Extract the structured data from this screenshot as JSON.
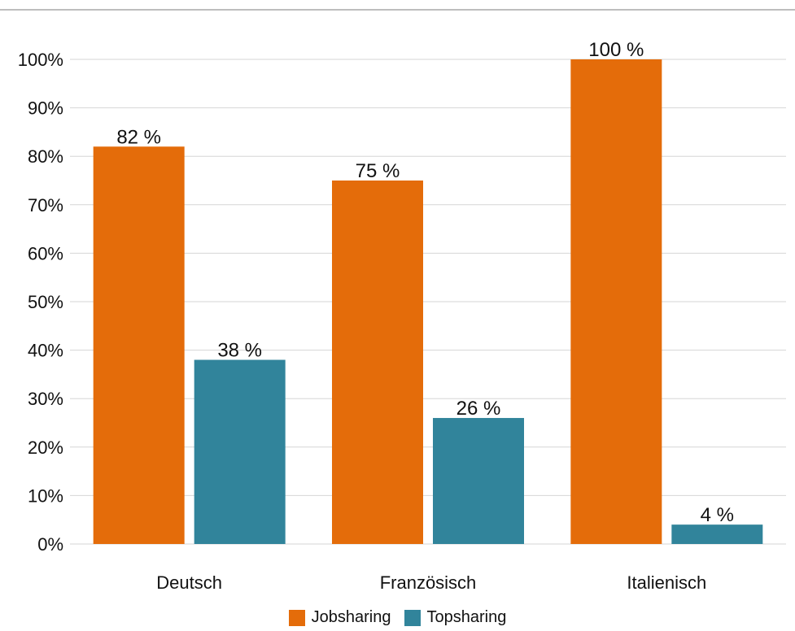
{
  "chart_data": {
    "type": "bar",
    "categories": [
      "Deutsch",
      "Französisch",
      "Italienisch"
    ],
    "series": [
      {
        "name": "Jobsharing",
        "values": [
          82,
          75,
          100
        ],
        "labels": [
          "82 %",
          "75 %",
          "100 %"
        ],
        "color": "#E46C0A"
      },
      {
        "name": "Topsharing",
        "values": [
          38,
          26,
          4
        ],
        "labels": [
          "38 %",
          "26 %",
          "4 %"
        ],
        "color": "#31849B"
      }
    ],
    "yticks": [
      "0%",
      "10%",
      "20%",
      "30%",
      "40%",
      "50%",
      "60%",
      "70%",
      "80%",
      "90%",
      "100%"
    ],
    "ylim": [
      0,
      100
    ],
    "grid": true,
    "legend_position": "bottom"
  }
}
